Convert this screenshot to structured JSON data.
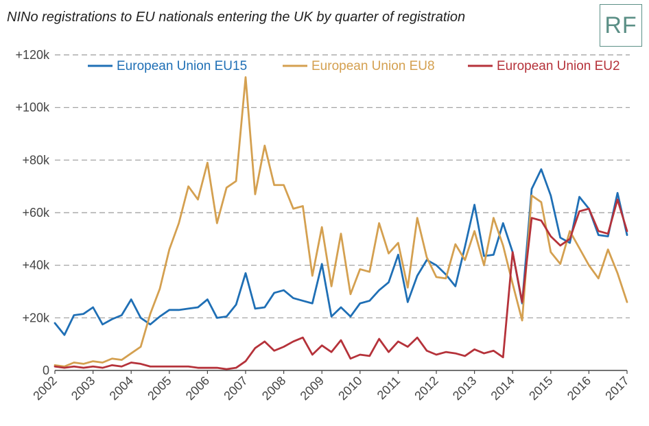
{
  "title": "NINo registrations to EU nationals entering the UK by quarter of registration",
  "logo_text": "RF",
  "chart_data": {
    "type": "line",
    "title": "NINo registrations to EU nationals entering the UK by quarter of registration",
    "xlabel": "",
    "ylabel": "",
    "ylim": [
      0,
      120000
    ],
    "y_ticks": [
      0,
      20000,
      40000,
      60000,
      80000,
      100000,
      120000
    ],
    "y_tick_labels": [
      "0",
      "+20k",
      "+40k",
      "+60k",
      "+80k",
      "+100k",
      "+120k"
    ],
    "x_tick_labels": [
      "2002",
      "2003",
      "2004",
      "2005",
      "2006",
      "2007",
      "2008",
      "2009",
      "2010",
      "2011",
      "2012",
      "2013",
      "2014",
      "2015",
      "2016",
      "2017"
    ],
    "grid": true,
    "legend_position": "top",
    "series": [
      {
        "name": "European Union EU15",
        "color": "#1f6fb5",
        "values": [
          18000,
          13500,
          21000,
          21500,
          24000,
          17500,
          19500,
          21000,
          27000,
          20000,
          17500,
          20500,
          23000,
          23000,
          23500,
          24000,
          27000,
          20000,
          20500,
          25000,
          37000,
          23500,
          24000,
          29500,
          30500,
          27500,
          26500,
          25500,
          40500,
          20500,
          24000,
          20500,
          25500,
          26500,
          30500,
          33500,
          44000,
          26000,
          36000,
          42000,
          40000,
          36500,
          32000,
          47000,
          63000,
          43500,
          44000,
          56000,
          45000,
          25500,
          69000,
          76500,
          66500,
          50500,
          48500,
          66000,
          61500,
          51500,
          51000,
          67500,
          51500
        ]
      },
      {
        "name": "European Union EU8",
        "color": "#d4a050",
        "values": [
          2000,
          1500,
          3000,
          2500,
          3500,
          3000,
          4500,
          4000,
          6500,
          9000,
          21500,
          31000,
          46000,
          56000,
          70000,
          65000,
          79000,
          56000,
          69500,
          72000,
          111500,
          67000,
          85500,
          70500,
          70500,
          61500,
          62500,
          36000,
          54500,
          32000,
          52000,
          29000,
          38500,
          37500,
          56000,
          44500,
          48500,
          31500,
          58000,
          43000,
          35500,
          35000,
          48000,
          42000,
          53000,
          40000,
          58000,
          47500,
          33000,
          19000,
          66500,
          64000,
          45000,
          40500,
          53000,
          46500,
          40000,
          35000,
          46000,
          37000,
          26000
        ]
      },
      {
        "name": "European Union EU2",
        "color": "#b5323a",
        "values": [
          1500,
          1000,
          1500,
          1000,
          1500,
          1000,
          2000,
          1500,
          3000,
          2500,
          1500,
          1500,
          1500,
          1500,
          1500,
          1000,
          1000,
          1000,
          500,
          1000,
          3500,
          8500,
          11000,
          7500,
          9000,
          11000,
          12500,
          6000,
          9500,
          7000,
          11500,
          4500,
          6000,
          5500,
          12000,
          7000,
          11000,
          9000,
          12500,
          7500,
          6000,
          7000,
          6500,
          5500,
          8000,
          6500,
          7500,
          5000,
          45000,
          26000,
          58000,
          57000,
          51000,
          47500,
          50000,
          60500,
          61500,
          53000,
          52000,
          65000,
          53000
        ]
      }
    ]
  }
}
